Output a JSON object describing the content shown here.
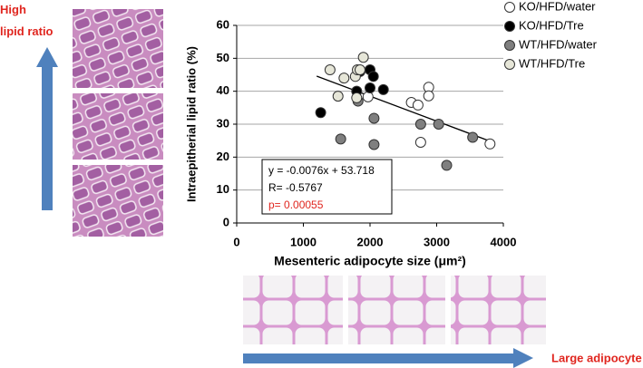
{
  "chart_data": {
    "type": "scatter",
    "y_label": "Intraepitherial lipid ratio (%)",
    "x_label": "Mesenteric adipocyte size (μm²)",
    "xlim": [
      0,
      4000
    ],
    "xticks": [
      0,
      1000,
      2000,
      3000,
      4000
    ],
    "ylim": [
      0,
      60
    ],
    "yticks": [
      0,
      10,
      20,
      30,
      40,
      50,
      60
    ],
    "grid": true,
    "legend": "right",
    "series": [
      {
        "name": "KO/HFD/water",
        "color": "#ffffff",
        "x": [
          1970,
          2620,
          2720,
          2880,
          2880,
          2760,
          3800
        ],
        "values": [
          38.3,
          36.6,
          35.8,
          41.2,
          38.6,
          24.5,
          24.0
        ]
      },
      {
        "name": "KO/HFD/Tre",
        "color": "#000000",
        "x": [
          1260,
          1800,
          1850,
          2000,
          2050,
          2000,
          2200
        ],
        "values": [
          33.5,
          40.0,
          46.0,
          46.5,
          44.5,
          41.0,
          40.5
        ]
      },
      {
        "name": "WT/HFD/water",
        "color": "#7f7f7f",
        "x": [
          1560,
          1820,
          2060,
          2060,
          2760,
          3030,
          3150,
          3540
        ],
        "values": [
          25.5,
          37.0,
          31.8,
          23.8,
          30.0,
          30.0,
          17.5,
          26.0
        ]
      },
      {
        "name": "WT/HFD/Tre",
        "color": "#e6e6d8",
        "x": [
          1400,
          1520,
          1610,
          1780,
          1810,
          1850,
          1900,
          1800
        ],
        "values": [
          46.5,
          38.5,
          44.0,
          44.5,
          46.5,
          46.5,
          50.3,
          38.0
        ]
      }
    ],
    "trendline": {
      "slope": -0.0076,
      "intercept": 53.718,
      "x_range": [
        1200,
        3800
      ]
    },
    "stats": [
      "y = -0.0076x + 53.718",
      "R= -0.5767",
      "p= 0.00055"
    ],
    "left_label": "High lipid ratio",
    "bottom_label": "Large adipocyte"
  }
}
